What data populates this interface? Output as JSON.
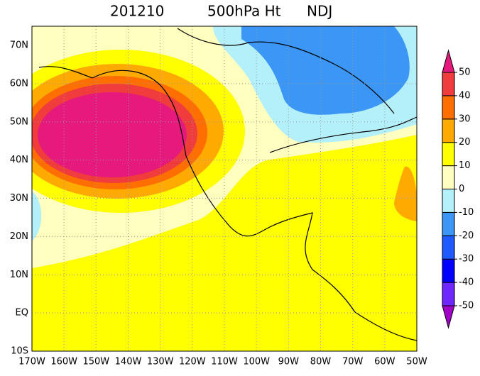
{
  "title": {
    "date": "201210",
    "field": "500hPa Ht",
    "season": "NDJ"
  },
  "map": {
    "lat_labels": [
      "70N",
      "60N",
      "50N",
      "40N",
      "30N",
      "20N",
      "10N",
      "EQ",
      "10S"
    ],
    "lon_labels": [
      "170W",
      "160W",
      "150W",
      "140W",
      "130W",
      "120W",
      "110W",
      "100W",
      "90W",
      "80W",
      "70W",
      "60W",
      "50W"
    ]
  },
  "colorbar": {
    "levels": [
      -50,
      -40,
      -30,
      -20,
      -10,
      0,
      10,
      20,
      30,
      40,
      50
    ],
    "colors": [
      "#a000c8",
      "#6e28ff",
      "#0000ff",
      "#1e5aff",
      "#3c96f5",
      "#b4f0fa",
      "#ffffc0",
      "#ffff00",
      "#ffaa00",
      "#ff6e00",
      "#f03c3c",
      "#e6197d"
    ]
  }
}
